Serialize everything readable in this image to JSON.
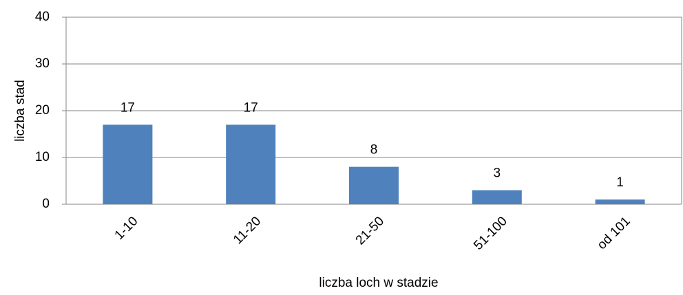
{
  "chart_data": {
    "type": "bar",
    "categories": [
      "1-10",
      "11-20",
      "21-50",
      "51-100",
      "od 101"
    ],
    "values": [
      17,
      17,
      8,
      3,
      1
    ],
    "color": "#4f81bd",
    "x_label": "liczba loch w stadzie",
    "y_label": "liczba stad",
    "ylim": [
      0,
      40
    ],
    "yticks": [
      0,
      10,
      20,
      30,
      40
    ],
    "grid": true
  }
}
